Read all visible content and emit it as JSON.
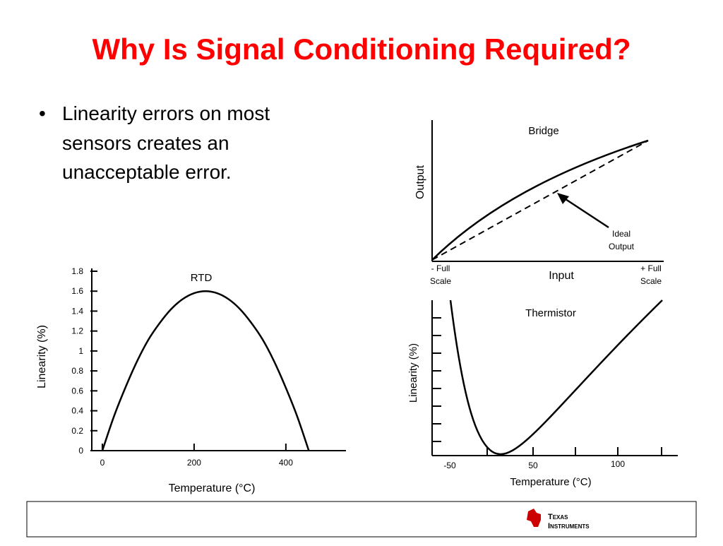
{
  "title": "Why Is Signal Conditioning Required?",
  "bullets": [
    [
      "Linearity errors on most",
      "sensors creates an",
      "unacceptable error."
    ]
  ],
  "chart_data": {
    "type": "line",
    "title": "RTD",
    "x_label": "Temperature (°C)",
    "y_label": "Linearity (%)",
    "x": [
      0,
      25,
      50,
      75,
      100,
      125,
      150,
      175,
      200,
      225,
      250,
      275,
      300,
      325,
      350,
      375,
      400,
      425,
      450
    ],
    "values": [
      0,
      0.34,
      0.63,
      0.89,
      1.11,
      1.28,
      1.42,
      1.52,
      1.58,
      1.6,
      1.58,
      1.52,
      1.42,
      1.28,
      1.11,
      0.89,
      0.63,
      0.34,
      0
    ],
    "color": "#000000",
    "xlim": [
      -23,
      531
    ],
    "xticks": [
      0,
      200,
      400
    ],
    "ylim": [
      0,
      1.8
    ],
    "yticks": [
      0,
      0.2,
      0.4,
      0.6,
      0.8,
      1,
      1.2,
      1.4,
      1.6,
      1.8
    ]
  },
  "diagrams": {
    "bridge": {
      "title": "Bridge",
      "y_label": "Output",
      "x_label": "Input",
      "x_left": [
        "- Full",
        "Scale"
      ],
      "x_right": [
        "+ Full",
        "Scale"
      ],
      "annotation": [
        "Ideal",
        "Output"
      ]
    },
    "thermistor": {
      "title": "Thermistor",
      "y_label": "Linearity (%)",
      "x_label": "Temperature (°C)",
      "x_tick_labels": [
        -50,
        50,
        100
      ]
    }
  },
  "footer": {
    "logo": [
      "Texas",
      "Instruments"
    ]
  }
}
